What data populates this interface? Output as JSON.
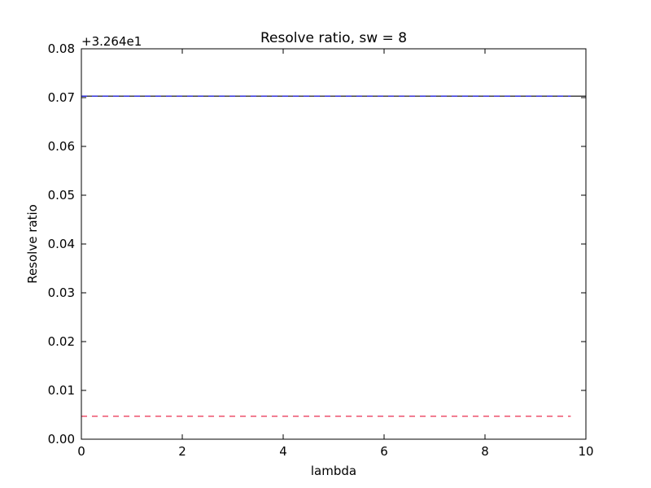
{
  "chart_data": {
    "type": "line",
    "title": "Resolve ratio, sw = 8",
    "xlabel": "lambda",
    "ylabel": "Resolve ratio",
    "offset_label": "+3.264e1",
    "xlim": [
      0,
      10
    ],
    "ylim": [
      0.0,
      0.08
    ],
    "x_ticks": [
      0,
      2,
      4,
      6,
      8,
      10
    ],
    "x_tick_labels": [
      "0",
      "2",
      "4",
      "6",
      "8",
      "10"
    ],
    "y_ticks": [
      0.0,
      0.01,
      0.02,
      0.03,
      0.04,
      0.05,
      0.06,
      0.07,
      0.08
    ],
    "y_tick_labels": [
      "0.00",
      "0.01",
      "0.02",
      "0.03",
      "0.04",
      "0.05",
      "0.06",
      "0.07",
      "0.08"
    ],
    "grid": false,
    "series": [
      {
        "style": "solid",
        "color": "#000000",
        "x": [
          0,
          10
        ],
        "y": [
          0.0703,
          0.0703
        ]
      },
      {
        "style": "dashed",
        "color": "#e8193c",
        "x": [
          0,
          9.7
        ],
        "y": [
          0.0047,
          0.0047
        ]
      },
      {
        "style": "dashed",
        "color": "#1a1aff",
        "x": [
          0,
          9.7
        ],
        "y": [
          0.0703,
          0.0703
        ]
      }
    ]
  }
}
